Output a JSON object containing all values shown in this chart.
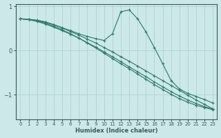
{
  "xlabel": "Humidex (Indice chaleur)",
  "bg_color": "#cce8e8",
  "plot_bg_color": "#cce8e8",
  "line_color": "#2e7d6e",
  "grid_color": "#aacece",
  "axis_color": "#3a5a5a",
  "xlim": [
    -0.5,
    23.5
  ],
  "ylim": [
    -1.55,
    1.05
  ],
  "yticks": [
    -1,
    0,
    1
  ],
  "xticks": [
    0,
    1,
    2,
    3,
    4,
    5,
    6,
    7,
    8,
    9,
    10,
    11,
    12,
    13,
    14,
    15,
    16,
    17,
    18,
    19,
    20,
    21,
    22,
    23
  ],
  "series": [
    [
      0.72,
      0.7,
      0.68,
      0.64,
      0.58,
      0.51,
      0.43,
      0.35,
      0.26,
      0.17,
      0.07,
      -0.03,
      -0.14,
      -0.24,
      -0.35,
      -0.46,
      -0.57,
      -0.68,
      -0.79,
      -0.9,
      -1.01,
      -1.12,
      -1.22,
      -1.32
    ],
    [
      0.72,
      0.7,
      0.66,
      0.6,
      0.53,
      0.45,
      0.37,
      0.28,
      0.18,
      0.08,
      -0.03,
      -0.14,
      -0.25,
      -0.37,
      -0.48,
      -0.59,
      -0.71,
      -0.82,
      -0.93,
      -1.03,
      -1.12,
      -1.2,
      -1.27,
      -1.33
    ],
    [
      0.72,
      0.7,
      0.67,
      0.62,
      0.55,
      0.47,
      0.38,
      0.28,
      0.17,
      0.06,
      -0.06,
      -0.18,
      -0.3,
      -0.41,
      -0.53,
      -0.65,
      -0.77,
      -0.88,
      -0.99,
      -1.09,
      -1.17,
      -1.24,
      -1.29,
      -1.34
    ],
    [
      0.72,
      0.71,
      0.69,
      0.65,
      0.59,
      0.52,
      0.45,
      0.38,
      0.32,
      0.27,
      0.23,
      0.38,
      0.88,
      0.92,
      0.72,
      0.42,
      0.07,
      -0.3,
      -0.68,
      -0.87,
      -0.97,
      -1.04,
      -1.11,
      -1.19
    ]
  ]
}
